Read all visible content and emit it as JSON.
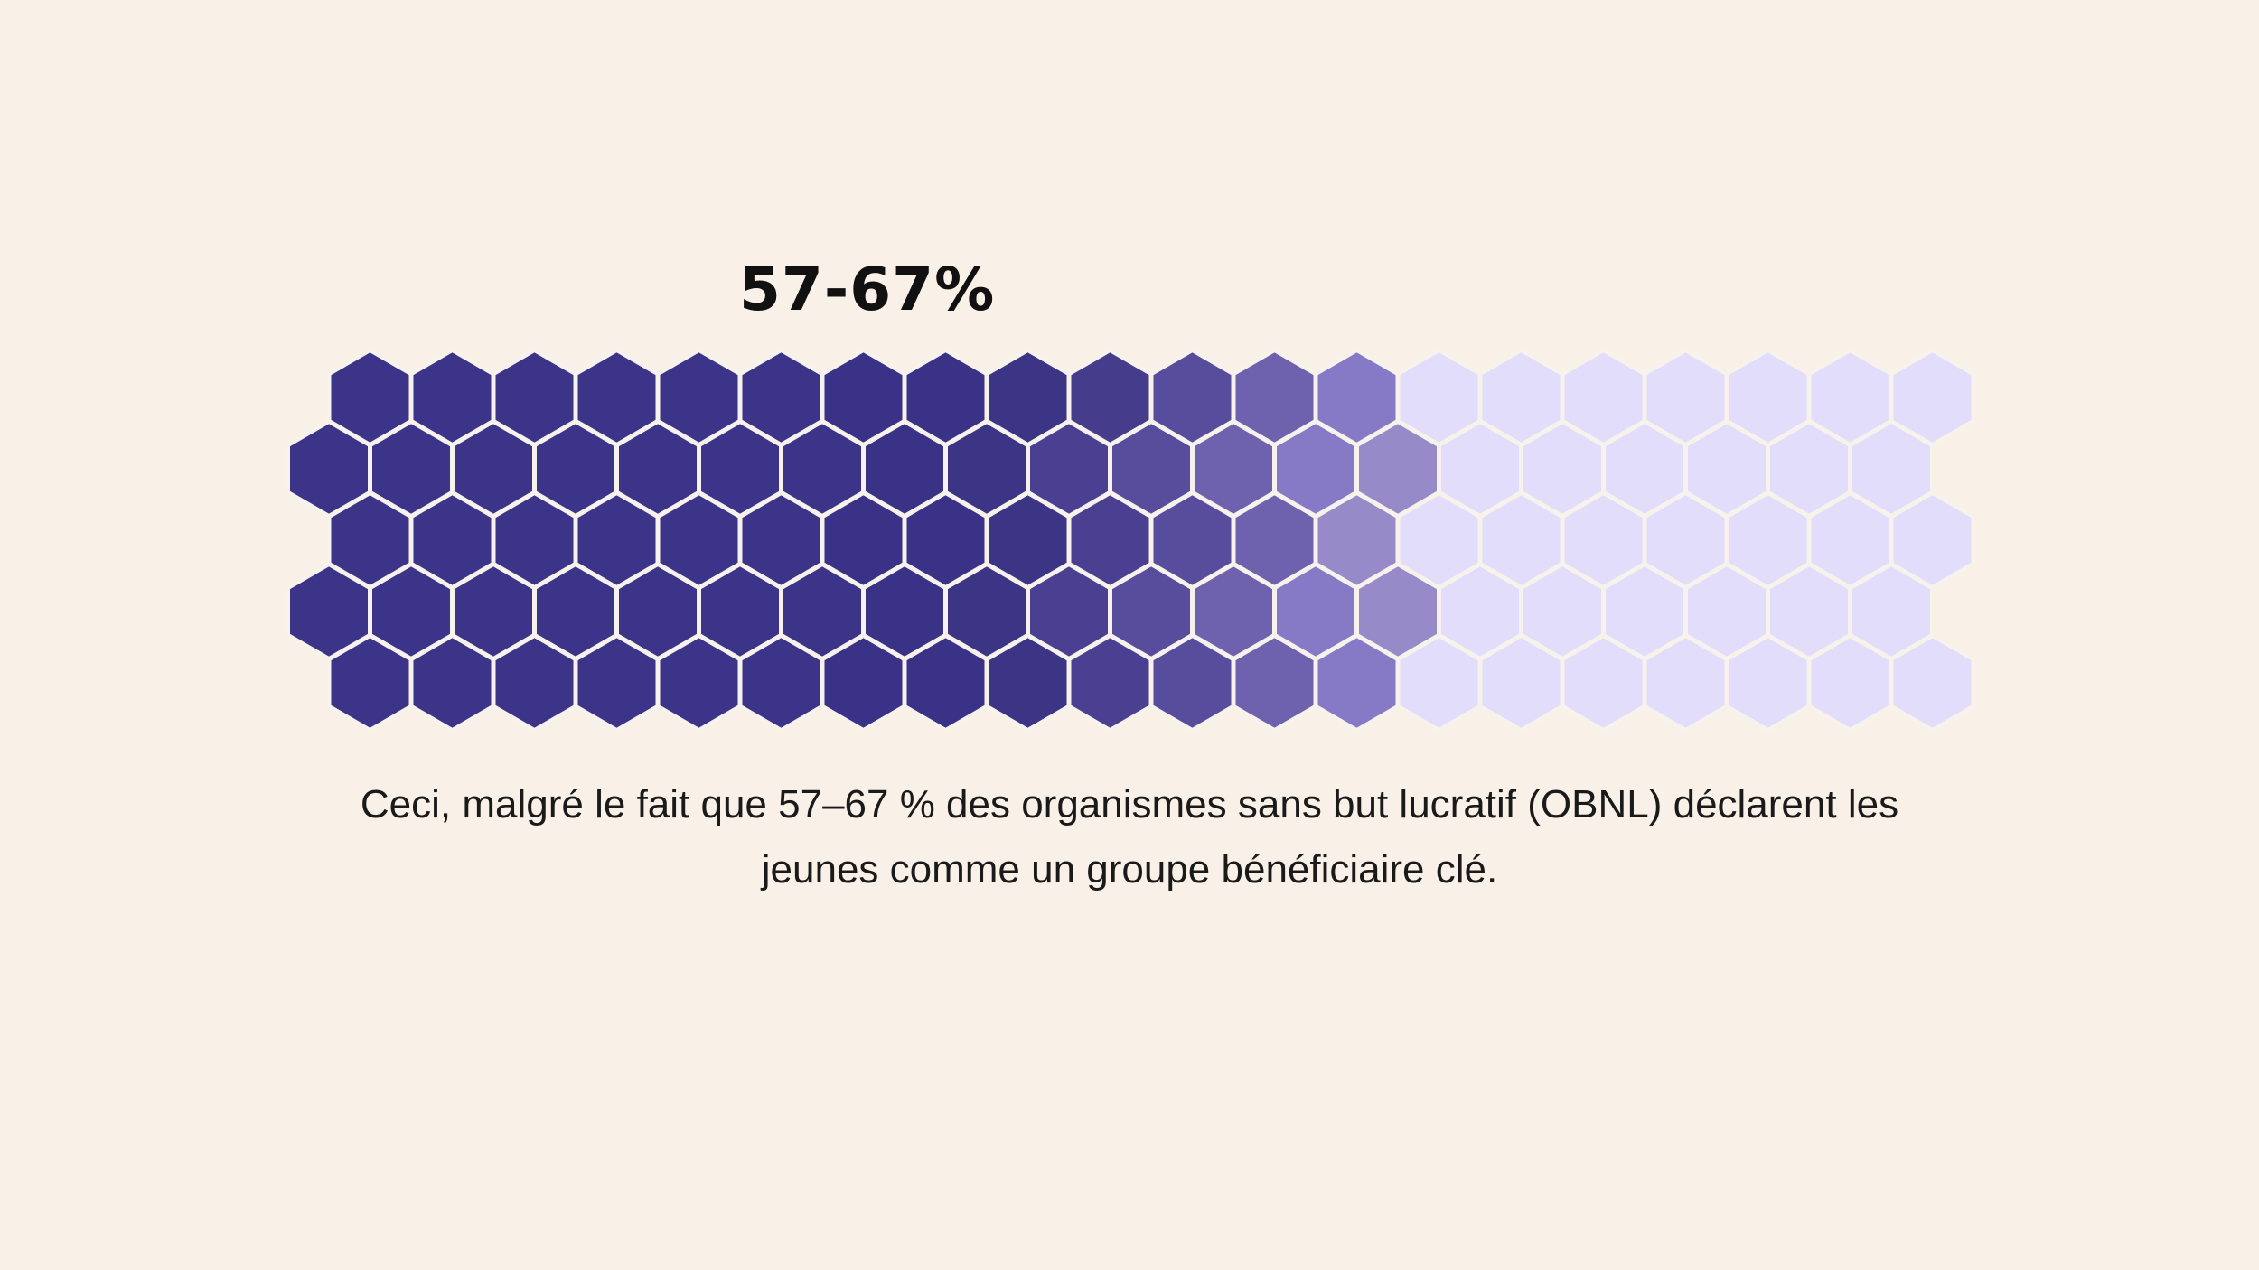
{
  "stat": {
    "range_label": "57-67%",
    "low_percent": 57,
    "high_percent": 67
  },
  "caption": {
    "line1": "Ceci, malgré le fait que 57–67 % des organismes sans but lucratif (OBNL) déclarent les",
    "line2": "jeunes comme un groupe bénéficiaire clé."
  },
  "colors": {
    "background": "#f9f1e8",
    "hex_stroke": "#f7f2ec",
    "filled_palette": [
      "#3b3488",
      "#3a3286",
      "#3c3585",
      "#463c8c",
      "#584d9d",
      "#6e61ad",
      "#8679c5",
      "#968ac8"
    ],
    "empty": "#e2ddfa"
  },
  "hex_grid": {
    "rows": [
      {
        "offset": "shifted",
        "cells": [
          "#3b3488",
          "#3b3488",
          "#3b3488",
          "#3b3488",
          "#3b3488",
          "#3b3488",
          "#3a3286",
          "#3a3286",
          "#3c3585",
          "#463c8c",
          "#584d9d",
          "#6e61ad",
          "#8679c5",
          "#e2ddfa",
          "#e2ddfa",
          "#e2ddfa",
          "#e2ddfa",
          "#e2ddfa",
          "#e2ddfa",
          "#e2ddfa"
        ]
      },
      {
        "offset": "flush",
        "cells": [
          "#3b3488",
          "#3b3488",
          "#3b3488",
          "#3b3488",
          "#3b3488",
          "#3b3488",
          "#3b3488",
          "#3a3286",
          "#3c3585",
          "#4b3f91",
          "#584d9d",
          "#6e61ad",
          "#8679c5",
          "#968ac8",
          "#e2ddfa",
          "#e2ddfa",
          "#e2ddfa",
          "#e2ddfa",
          "#e2ddfa",
          "#e2ddfa"
        ]
      },
      {
        "offset": "shifted",
        "cells": [
          "#3b3488",
          "#3b3488",
          "#3b3488",
          "#3b3488",
          "#3b3488",
          "#3b3488",
          "#3a3286",
          "#3a3286",
          "#3c3585",
          "#4b3f91",
          "#584d9d",
          "#6e61ad",
          "#968ac8",
          "#e2ddfa",
          "#e2ddfa",
          "#e2ddfa",
          "#e2ddfa",
          "#e2ddfa",
          "#e2ddfa",
          "#e2ddfa"
        ]
      },
      {
        "offset": "flush",
        "cells": [
          "#3b3488",
          "#3b3488",
          "#3b3488",
          "#3b3488",
          "#3b3488",
          "#3b3488",
          "#3b3488",
          "#3a3286",
          "#3c3585",
          "#4b3f91",
          "#584d9d",
          "#6e61ad",
          "#8679c5",
          "#968ac8",
          "#e2ddfa",
          "#e2ddfa",
          "#e2ddfa",
          "#e2ddfa",
          "#e2ddfa",
          "#e2ddfa"
        ]
      },
      {
        "offset": "shifted",
        "cells": [
          "#3b3488",
          "#3b3488",
          "#3b3488",
          "#3b3488",
          "#3b3488",
          "#3b3488",
          "#3a3286",
          "#3a3286",
          "#3c3585",
          "#4b3f91",
          "#584d9d",
          "#6e61ad",
          "#8679c5",
          "#e2ddfa",
          "#e2ddfa",
          "#e2ddfa",
          "#e2ddfa",
          "#e2ddfa",
          "#e2ddfa",
          "#e2ddfa"
        ]
      }
    ]
  }
}
